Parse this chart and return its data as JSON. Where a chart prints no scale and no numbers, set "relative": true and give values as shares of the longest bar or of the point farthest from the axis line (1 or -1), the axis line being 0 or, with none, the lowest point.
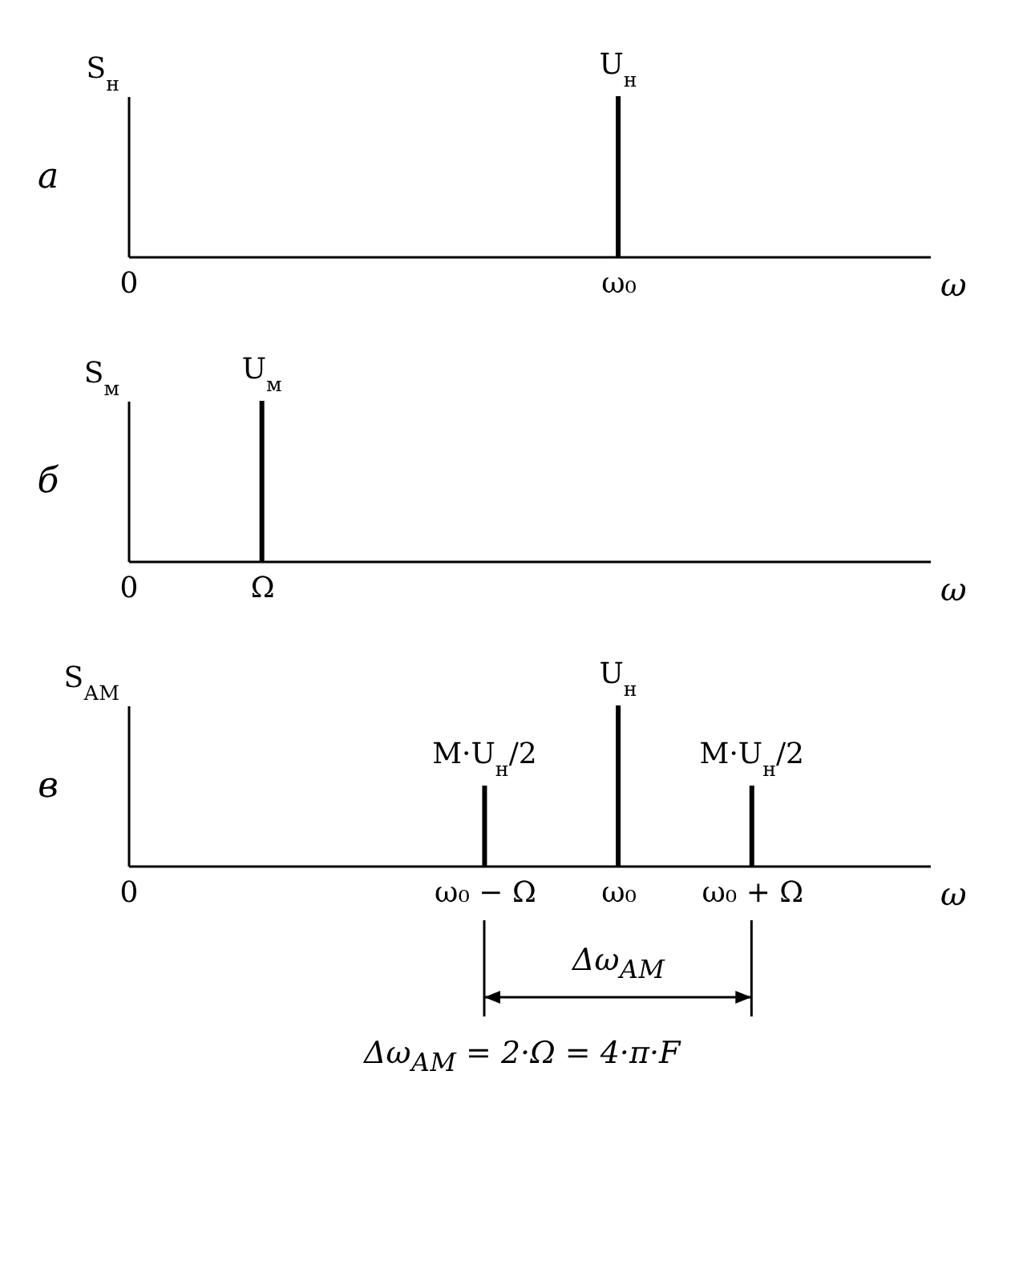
{
  "chart_data": [
    {
      "type": "bar",
      "relative": true,
      "categories": [
        "0",
        null,
        null,
        null,
        null,
        null,
        null,
        null,
        null,
        null,
        null,
        "ω₀",
        null,
        null,
        null,
        null,
        null,
        null,
        null
      ],
      "values": [
        null,
        null,
        null,
        null,
        null,
        null,
        null,
        null,
        null,
        null,
        null,
        1,
        null,
        null,
        null,
        null,
        null,
        null,
        null
      ],
      "color": "#000000",
      "xlabel": "ω",
      "ylabel": "S$_{н}$",
      "annotations": [
        "а",
        {
          "text": "U$_{н}$",
          "x": "ω₀",
          "y": 1
        }
      ]
    },
    {
      "type": "bar",
      "relative": true,
      "categories": [
        "0",
        null,
        null,
        "Ω",
        null,
        null,
        null,
        null,
        null,
        null,
        null,
        null,
        null,
        null,
        null,
        null,
        null,
        null,
        null
      ],
      "values": [
        null,
        null,
        null,
        1,
        null,
        null,
        null,
        null,
        null,
        null,
        null,
        null,
        null,
        null,
        null,
        null,
        null,
        null,
        null
      ],
      "color": "#000000",
      "xlabel": "ω",
      "ylabel": "S$_{м}$",
      "annotations": [
        "б",
        {
          "text": "U$_{м}$",
          "x": "Ω",
          "y": 1
        }
      ]
    },
    {
      "type": "bar",
      "relative": true,
      "categories": [
        "0",
        null,
        null,
        null,
        null,
        null,
        null,
        null,
        "ω₀ − Ω",
        null,
        null,
        "ω₀",
        null,
        null,
        "ω₀ + Ω",
        null,
        null,
        null,
        null
      ],
      "values": [
        null,
        null,
        null,
        null,
        null,
        null,
        null,
        null,
        0.5,
        null,
        null,
        1,
        null,
        null,
        0.5,
        null,
        null,
        null,
        null
      ],
      "color": "#000000",
      "xlabel": "ω",
      "ylabel": "S$_{АМ}$",
      "annotations": [
        "в",
        {
          "text": "M·U$_{н}$/2",
          "x": "ω₀ − Ω",
          "y": 0.5
        },
        {
          "text": "U$_{н}$",
          "x": "ω₀",
          "y": 1
        },
        {
          "text": "M·U$_{н}$/2",
          "x": "ω₀ + Ω",
          "y": 0.5
        },
        "Δω$_{АМ}$",
        "Δω$_{АМ}$ = 2·Ω = 4·π·F"
      ]
    }
  ]
}
